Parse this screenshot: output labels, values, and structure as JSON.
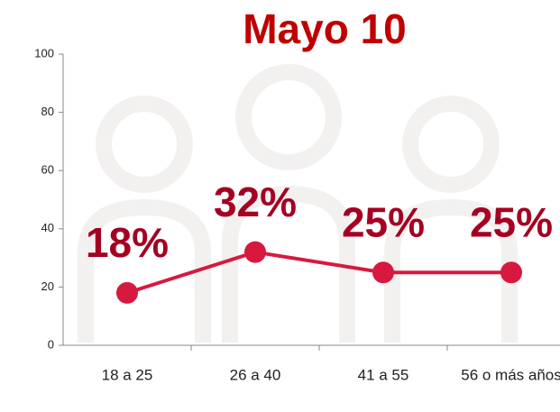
{
  "chart_data": {
    "type": "line",
    "title": "Mayo 10",
    "categories": [
      "18 a 25",
      "26 a 40",
      "41 a 55",
      "56 o más años"
    ],
    "values": [
      18,
      32,
      25,
      25
    ],
    "value_labels": [
      "18%",
      "32%",
      "25%",
      "25%"
    ],
    "color": "#d7193f",
    "ylim": [
      0,
      100
    ],
    "yticks": [
      0,
      20,
      40,
      60,
      80,
      100
    ],
    "grid": false
  }
}
